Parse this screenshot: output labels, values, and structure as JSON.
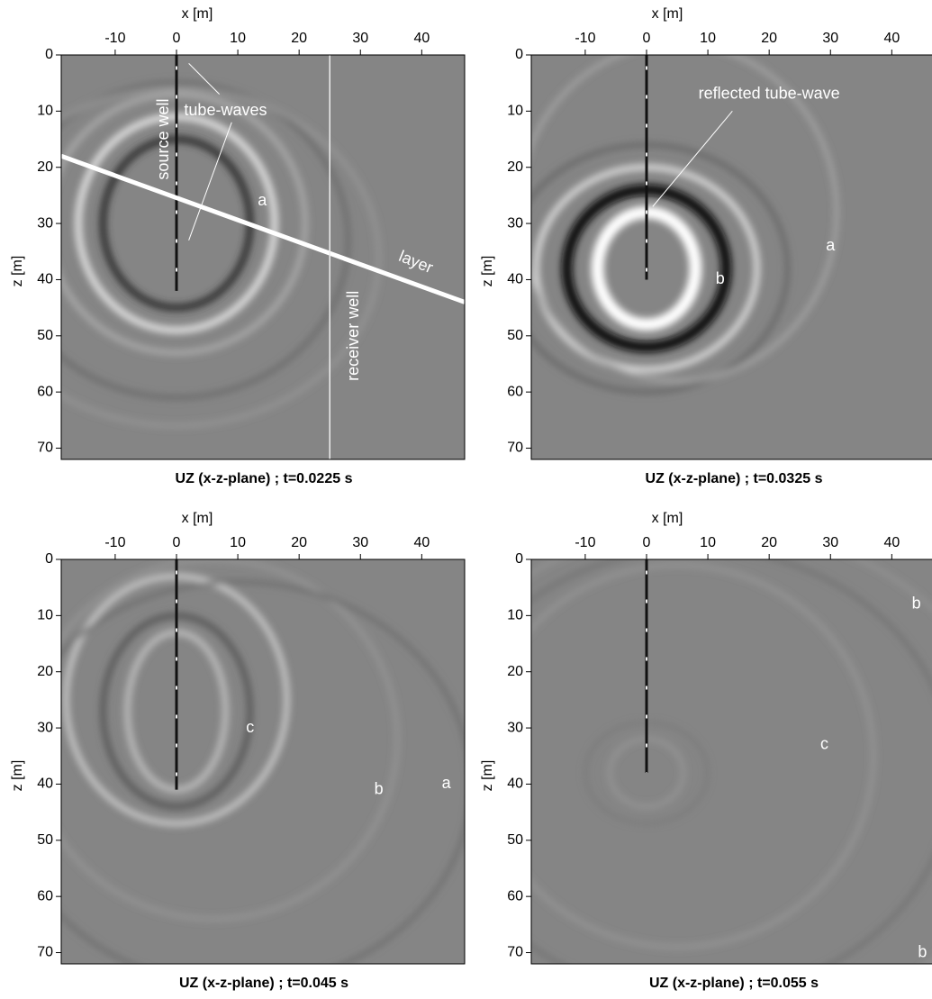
{
  "chart_data": [
    {
      "type": "image",
      "title": "UZ (x-z-plane) ; t=0.0225 s",
      "xlabel": "x [m]",
      "ylabel": "z [m]",
      "xlim": [
        -18.8,
        47
      ],
      "ylim": [
        0,
        72
      ],
      "y_inverted": true,
      "xticks": [
        -10,
        0,
        10,
        20,
        30,
        40
      ],
      "yticks": [
        0,
        10,
        20,
        30,
        40,
        50,
        60,
        70
      ],
      "annotations": [
        "source well",
        "tube-waves",
        "a",
        "layer",
        "receiver well"
      ]
    },
    {
      "type": "image",
      "title": "UZ (x-z-plane) ; t=0.0325 s",
      "xlabel": "x [m]",
      "ylabel": "z [m]",
      "xlim": [
        -18.8,
        47
      ],
      "ylim": [
        0,
        72
      ],
      "y_inverted": true,
      "xticks": [
        -10,
        0,
        10,
        20,
        30,
        40
      ],
      "yticks": [
        0,
        10,
        20,
        30,
        40,
        50,
        60,
        70
      ],
      "annotations": [
        "reflected tube-wave",
        "a",
        "b"
      ]
    },
    {
      "type": "image",
      "title": "UZ (x-z-plane) ; t=0.045 s",
      "xlabel": "x [m]",
      "ylabel": "z [m]",
      "xlim": [
        -18.8,
        47
      ],
      "ylim": [
        0,
        72
      ],
      "y_inverted": true,
      "xticks": [
        -10,
        0,
        10,
        20,
        30,
        40
      ],
      "yticks": [
        0,
        10,
        20,
        30,
        40,
        50,
        60,
        70
      ],
      "annotations": [
        "c",
        "b",
        "a"
      ]
    },
    {
      "type": "image",
      "title": "UZ (x-z-plane) ; t=0.055 s",
      "xlabel": "x [m]",
      "ylabel": "z [m]",
      "xlim": [
        -18.8,
        47
      ],
      "ylim": [
        0,
        72
      ],
      "y_inverted": true,
      "xticks": [
        -10,
        0,
        10,
        20,
        30,
        40
      ],
      "yticks": [
        0,
        10,
        20,
        30,
        40,
        50,
        60,
        70
      ],
      "annotations": [
        "b",
        "c",
        "b"
      ]
    }
  ]
}
